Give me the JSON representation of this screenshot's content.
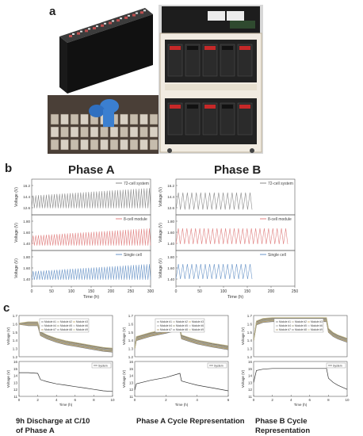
{
  "panel_labels": {
    "a": "a",
    "b": "b",
    "c": "c"
  },
  "panel_b": {
    "phase_a_title": "Phase A",
    "phase_b_title": "Phase B",
    "ylabel": "Voltage (V)",
    "xlabel": "Time (h)",
    "rows": [
      {
        "legend": "72-cell system",
        "color": "#8a8a8a",
        "yticks_a": [
          "16.2",
          "14.4",
          "12.6"
        ],
        "yticks_b": [
          "16.2",
          "14.4",
          "12.6"
        ]
      },
      {
        "legend": "8-cell module",
        "color": "#e08080",
        "yticks_a": [
          "1.80",
          "1.60",
          "1.40"
        ],
        "yticks_b": [
          "1.80",
          "1.60",
          "1.40"
        ]
      },
      {
        "legend": "Single cell",
        "color": "#6a95c8",
        "yticks_a": [
          "1.80",
          "1.60",
          "1.40"
        ],
        "yticks_b": [
          "1.80",
          "1.60",
          "1.40"
        ]
      }
    ],
    "xticks_a": [
      "0",
      "50",
      "100",
      "150",
      "200",
      "250",
      "300"
    ],
    "xticks_b": [
      "0",
      "50",
      "100",
      "150",
      "200",
      "250"
    ]
  },
  "panel_c": {
    "ylabel": "Voltage (V)",
    "xlabel": "Time (h)",
    "module_legend": [
      "Module #1",
      "Module #2",
      "Module #3",
      "Module #4",
      "Module #5",
      "Module #6",
      "Module #7",
      "Module #8",
      "Module #9"
    ],
    "system_legend": "System",
    "top_yticks": [
      "1.7",
      "1.6",
      "1.5",
      "1.4",
      "1.3",
      "1.2"
    ],
    "bottom_yticks": [
      "16",
      "15",
      "14",
      "13",
      "12",
      "11"
    ],
    "xticks": [
      "0",
      "2",
      "4",
      "6",
      "8",
      "10"
    ],
    "captions": [
      "9h Discharge at C/10\nof Phase A",
      "Phase A Cycle Representation",
      "Phase B Cycle Representation"
    ]
  },
  "chart_data": [
    {
      "type": "line",
      "panel": "b-phase-a",
      "title": "Phase A",
      "xlabel": "Time (h)",
      "ylabel": "Voltage (V)",
      "xlim": [
        0,
        300
      ],
      "series": [
        {
          "name": "72-cell system",
          "ylim": [
            12.0,
            16.8
          ],
          "cycles": 45,
          "low": 12.9,
          "high_start": 14.6,
          "high_end": 15.6
        },
        {
          "name": "8-cell module",
          "ylim": [
            1.35,
            1.85
          ],
          "cycles": 45,
          "low": 1.42,
          "high_start": 1.56,
          "high_end": 1.66
        },
        {
          "name": "Single cell",
          "ylim": [
            1.35,
            1.85
          ],
          "cycles": 45,
          "low": 1.44,
          "high_start": 1.56,
          "high_end": 1.66
        }
      ]
    },
    {
      "type": "line",
      "panel": "b-phase-b",
      "title": "Phase B",
      "xlabel": "Time (h)",
      "ylabel": "Voltage (V)",
      "xlim": [
        0,
        250
      ],
      "series": [
        {
          "name": "72-cell system",
          "ylim": [
            12.0,
            16.8
          ],
          "cycles": 17,
          "x_end": 160,
          "low": 12.7,
          "high_start": 15.0,
          "high_end": 15.0
        },
        {
          "name": "8-cell module",
          "ylim": [
            1.35,
            1.85
          ],
          "cycles": 26,
          "x_end": 235,
          "low": 1.44,
          "high_start": 1.66,
          "high_end": 1.66
        },
        {
          "name": "Single cell",
          "ylim": [
            1.35,
            1.85
          ],
          "cycles": 17,
          "x_end": 160,
          "low": 1.45,
          "high_start": 1.66,
          "high_end": 1.66
        }
      ]
    },
    {
      "type": "line",
      "panel": "c-1",
      "title": "9h Discharge at C/10 of Phase A",
      "xlabel": "Time (h)",
      "ylabel": "Voltage (V)",
      "xlim": [
        0,
        10
      ],
      "top_ylim": [
        1.2,
        1.7
      ],
      "bottom_ylim": [
        11,
        16
      ],
      "modules_x": [
        0,
        1,
        2,
        2.3,
        3,
        4,
        5,
        6,
        7,
        8,
        9,
        10
      ],
      "modules_y": [
        1.6,
        1.6,
        1.6,
        1.48,
        1.44,
        1.4,
        1.37,
        1.35,
        1.33,
        1.31,
        1.29,
        1.28
      ],
      "system_x": [
        0,
        1,
        2,
        2.3,
        3,
        4,
        5,
        6,
        7,
        8,
        9,
        10
      ],
      "system_y": [
        14.4,
        14.4,
        14.3,
        13.4,
        13.1,
        12.8,
        12.6,
        12.4,
        12.2,
        12.0,
        11.8,
        11.7
      ]
    },
    {
      "type": "line",
      "panel": "c-2",
      "title": "Phase A Cycle Representation",
      "xlabel": "Time (h)",
      "ylabel": "Voltage (V)",
      "xlim": [
        0,
        6
      ],
      "top_ylim": [
        1.2,
        1.7
      ],
      "bottom_ylim": [
        11,
        16
      ],
      "modules_x": [
        0,
        0.1,
        1,
        2,
        2.9,
        3.0,
        3.5,
        4,
        5,
        6
      ],
      "modules_y": [
        1.3,
        1.42,
        1.47,
        1.51,
        1.55,
        1.44,
        1.41,
        1.38,
        1.34,
        1.31
      ],
      "system_x": [
        0,
        0.1,
        1,
        2,
        2.9,
        3.0,
        3.5,
        4,
        5,
        6
      ],
      "system_y": [
        11.9,
        12.8,
        13.3,
        13.7,
        14.3,
        13.2,
        12.9,
        12.6,
        12.2,
        11.8
      ]
    },
    {
      "type": "line",
      "panel": "c-3",
      "title": "Phase B Cycle Representation",
      "xlabel": "Time (h)",
      "ylabel": "Voltage (V)",
      "xlim": [
        0,
        10
      ],
      "top_ylim": [
        1.2,
        1.7
      ],
      "bottom_ylim": [
        11,
        16
      ],
      "modules_x": [
        0,
        0.3,
        1,
        2,
        4,
        6,
        7.8,
        8.0,
        8.5,
        9,
        10
      ],
      "modules_y": [
        1.4,
        1.61,
        1.64,
        1.65,
        1.65,
        1.65,
        1.65,
        1.52,
        1.47,
        1.44,
        1.4
      ],
      "system_x": [
        0,
        0.3,
        1,
        2,
        4,
        6,
        7.8,
        8.0,
        8.5,
        9,
        10
      ],
      "system_y": [
        13.0,
        14.7,
        14.9,
        15.0,
        15.0,
        15.0,
        15.0,
        13.6,
        13.0,
        12.6,
        12.0
      ]
    }
  ]
}
